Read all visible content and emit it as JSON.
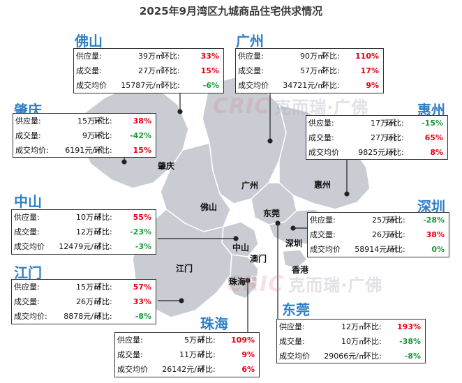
{
  "title": "2025年9月湾区九城商品住宅供求情况",
  "watermark": {
    "logo": "CRIC",
    "text": "克而瑞·广佛"
  },
  "colors": {
    "title": "#2f7fc6",
    "increase": "#e60012",
    "decrease": "#1a9a3a",
    "land": "#c9ccd3"
  },
  "map_labels": {
    "zhaoqing": "肇庆",
    "guangzhou": "广州",
    "huizhou": "惠州",
    "foshan": "佛山",
    "dongguan": "东莞",
    "zhongshan": "中山",
    "shenzhen": "深圳",
    "jiangmen": "江门",
    "macau": "澳门",
    "hongkong": "香港",
    "zhuhai": "珠海"
  },
  "cities": {
    "foshan": {
      "name": "佛山",
      "rows": [
        {
          "label": "供应量:",
          "value": "39万㎡",
          "hb": "环比:",
          "change": "33%",
          "dir": "up"
        },
        {
          "label": "成交量:",
          "value": "27万㎡",
          "hb": "环比:",
          "change": "15%",
          "dir": "up"
        },
        {
          "label": "成交均价",
          "value": "15787元/㎡",
          "hb": "环比:",
          "change": "-6%",
          "dir": "down"
        }
      ]
    },
    "guangzhou": {
      "name": "广州",
      "rows": [
        {
          "label": "供应量:",
          "value": "90万㎡",
          "hb": "环比:",
          "change": "110%",
          "dir": "up"
        },
        {
          "label": "成交量:",
          "value": "57万㎡",
          "hb": "环比:",
          "change": "17%",
          "dir": "up"
        },
        {
          "label": "成交均价",
          "value": "34721元/㎡",
          "hb": "环比:",
          "change": "9%",
          "dir": "up"
        }
      ]
    },
    "zhaoqing": {
      "name": "肇庆",
      "rows": [
        {
          "label": "供应量:",
          "value": "15万㎡",
          "hb": "环比:",
          "change": "38%",
          "dir": "up"
        },
        {
          "label": "成交量:",
          "value": "9万㎡",
          "hb": "环比:",
          "change": "-42%",
          "dir": "down"
        },
        {
          "label": "成交均价:",
          "value": "6191元/㎡",
          "hb": "环比:",
          "change": "15%",
          "dir": "up"
        }
      ]
    },
    "huizhou": {
      "name": "惠州",
      "rows": [
        {
          "label": "供应量:",
          "value": "17万㎡",
          "hb": "环比:",
          "change": "-15%",
          "dir": "down"
        },
        {
          "label": "成交量:",
          "value": "27万㎡",
          "hb": "环比:",
          "change": "65%",
          "dir": "up"
        },
        {
          "label": "成交均价",
          "value": "9825元/㎡",
          "hb": "环比:",
          "change": "8%",
          "dir": "up"
        }
      ]
    },
    "zhongshan": {
      "name": "中山",
      "rows": [
        {
          "label": "供应量:",
          "value": "10万㎡",
          "hb": "环比:",
          "change": "55%",
          "dir": "up"
        },
        {
          "label": "成交量:",
          "value": "12万㎡",
          "hb": "环比:",
          "change": "-23%",
          "dir": "down"
        },
        {
          "label": "成交均价",
          "value": "12479元/㎡",
          "hb": "环比:",
          "change": "-3%",
          "dir": "down"
        }
      ]
    },
    "shenzhen": {
      "name": "深圳",
      "rows": [
        {
          "label": "供应量:",
          "value": "25万㎡",
          "hb": "环比:",
          "change": "-28%",
          "dir": "down"
        },
        {
          "label": "成交量:",
          "value": "26万㎡",
          "hb": "环比:",
          "change": "38%",
          "dir": "up"
        },
        {
          "label": "成交均价",
          "value": "58914元/㎡",
          "hb": "环比:",
          "change": "0%",
          "dir": "down"
        }
      ]
    },
    "jiangmen": {
      "name": "江门",
      "rows": [
        {
          "label": "供应量:",
          "value": "15万㎡",
          "hb": "环比:",
          "change": "57%",
          "dir": "up"
        },
        {
          "label": "成交量:",
          "value": "26万㎡",
          "hb": "环比:",
          "change": "33%",
          "dir": "up"
        },
        {
          "label": "成交均价:",
          "value": "8878元/㎡",
          "hb": "环比:",
          "change": "-8%",
          "dir": "down"
        }
      ]
    },
    "dongguan": {
      "name": "东莞",
      "rows": [
        {
          "label": "供应量:",
          "value": "12万㎡",
          "hb": "环比:",
          "change": "193%",
          "dir": "up"
        },
        {
          "label": "成交量:",
          "value": "10万㎡",
          "hb": "环比:",
          "change": "-38%",
          "dir": "down"
        },
        {
          "label": "成交均价",
          "value": "29066元/㎡",
          "hb": "环比:",
          "change": "-8%",
          "dir": "down"
        }
      ]
    },
    "zhuhai": {
      "name": "珠海",
      "rows": [
        {
          "label": "供应量:",
          "value": "5万㎡",
          "hb": "环比:",
          "change": "109%",
          "dir": "up"
        },
        {
          "label": "成交量:",
          "value": "11万㎡",
          "hb": "环比:",
          "change": "9%",
          "dir": "up"
        },
        {
          "label": "成交均价",
          "value": "26142元/㎡",
          "hb": "环比:",
          "change": "6%",
          "dir": "up"
        }
      ]
    }
  }
}
